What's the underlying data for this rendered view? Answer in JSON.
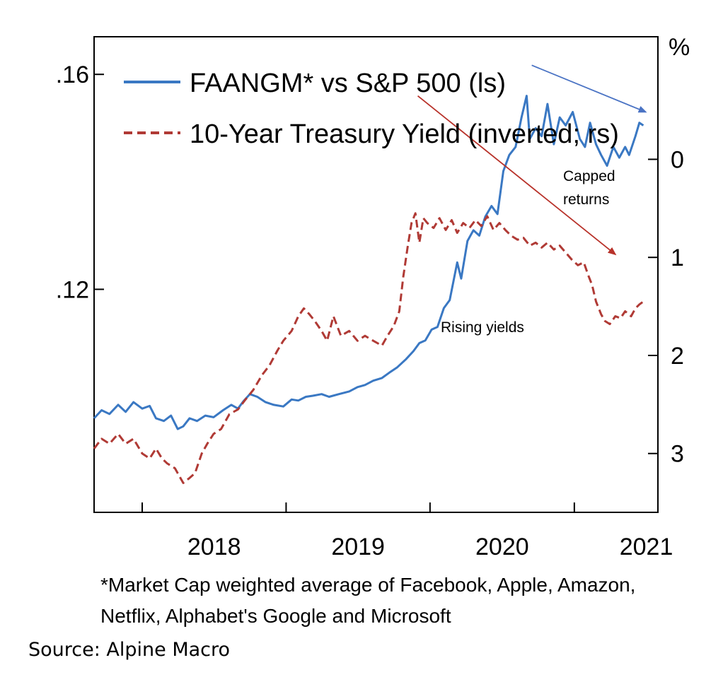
{
  "chart_data": {
    "type": "line",
    "x_axis": {
      "ticks": [
        "2018",
        "2019",
        "2020",
        "2021"
      ],
      "range": [
        "2017-09-01",
        "2021-08-01"
      ]
    },
    "y_left": {
      "ticks": [
        ".16",
        ".12"
      ],
      "tick_values": [
        0.16,
        0.12
      ],
      "range": [
        0.0785,
        0.167
      ]
    },
    "y_right": {
      "label": "%",
      "ticks": [
        "0",
        "1",
        "2",
        "3"
      ],
      "tick_values": [
        0,
        1,
        2,
        3
      ],
      "inverted": true,
      "range": [
        -1.25,
        3.6
      ]
    },
    "series": [
      {
        "name": "FAANGM* vs S&P 500 (ls)",
        "axis": "left",
        "color": "#3a78c3",
        "style": "solid",
        "points": [
          [
            "2017-09-01",
            0.096
          ],
          [
            "2017-09-20",
            0.0975
          ],
          [
            "2017-10-10",
            0.0968
          ],
          [
            "2017-11-01",
            0.0985
          ],
          [
            "2017-11-20",
            0.0972
          ],
          [
            "2017-12-10",
            0.099
          ],
          [
            "2018-01-01",
            0.0978
          ],
          [
            "2018-01-20",
            0.0983
          ],
          [
            "2018-02-05",
            0.096
          ],
          [
            "2018-02-25",
            0.0955
          ],
          [
            "2018-03-15",
            0.0965
          ],
          [
            "2018-04-01",
            0.094
          ],
          [
            "2018-04-15",
            0.0945
          ],
          [
            "2018-05-01",
            0.096
          ],
          [
            "2018-05-20",
            0.0955
          ],
          [
            "2018-06-10",
            0.0965
          ],
          [
            "2018-07-01",
            0.0962
          ],
          [
            "2018-07-25",
            0.0975
          ],
          [
            "2018-08-15",
            0.0985
          ],
          [
            "2018-09-01",
            0.0978
          ],
          [
            "2018-09-15",
            0.0992
          ],
          [
            "2018-10-01",
            0.1005
          ],
          [
            "2018-10-20",
            0.1
          ],
          [
            "2018-11-10",
            0.099
          ],
          [
            "2018-12-01",
            0.0985
          ],
          [
            "2018-12-25",
            0.0982
          ],
          [
            "2019-01-15",
            0.0995
          ],
          [
            "2019-02-01",
            0.0993
          ],
          [
            "2019-02-20",
            0.1
          ],
          [
            "2019-03-10",
            0.1002
          ],
          [
            "2019-04-01",
            0.1005
          ],
          [
            "2019-04-20",
            0.1
          ],
          [
            "2019-05-15",
            0.1005
          ],
          [
            "2019-06-10",
            0.101
          ],
          [
            "2019-07-01",
            0.1018
          ],
          [
            "2019-07-20",
            0.1022
          ],
          [
            "2019-08-10",
            0.103
          ],
          [
            "2019-09-01",
            0.1035
          ],
          [
            "2019-09-20",
            0.1045
          ],
          [
            "2019-10-10",
            0.1055
          ],
          [
            "2019-11-01",
            0.107
          ],
          [
            "2019-11-20",
            0.1085
          ],
          [
            "2019-12-05",
            0.11
          ],
          [
            "2019-12-20",
            0.1105
          ],
          [
            "2020-01-05",
            0.1125
          ],
          [
            "2020-01-20",
            0.113
          ],
          [
            "2020-02-05",
            0.1165
          ],
          [
            "2020-02-20",
            0.118
          ],
          [
            "2020-03-10",
            0.125
          ],
          [
            "2020-03-20",
            0.122
          ],
          [
            "2020-04-05",
            0.129
          ],
          [
            "2020-04-20",
            0.131
          ],
          [
            "2020-05-05",
            0.13
          ],
          [
            "2020-05-20",
            0.1335
          ],
          [
            "2020-06-05",
            0.1355
          ],
          [
            "2020-06-20",
            0.134
          ],
          [
            "2020-07-05",
            0.142
          ],
          [
            "2020-07-20",
            0.145
          ],
          [
            "2020-08-05",
            0.1465
          ],
          [
            "2020-08-20",
            0.152
          ],
          [
            "2020-09-02",
            0.156
          ],
          [
            "2020-09-10",
            0.148
          ],
          [
            "2020-09-25",
            0.15
          ],
          [
            "2020-10-10",
            0.1485
          ],
          [
            "2020-10-25",
            0.1545
          ],
          [
            "2020-11-10",
            0.147
          ],
          [
            "2020-11-25",
            0.152
          ],
          [
            "2020-12-10",
            0.1505
          ],
          [
            "2020-12-28",
            0.153
          ],
          [
            "2021-01-15",
            0.148
          ],
          [
            "2021-01-28",
            0.1465
          ],
          [
            "2021-02-10",
            0.151
          ],
          [
            "2021-02-25",
            0.147
          ],
          [
            "2021-03-10",
            0.145
          ],
          [
            "2021-03-25",
            0.143
          ],
          [
            "2021-04-10",
            0.1465
          ],
          [
            "2021-04-25",
            0.1445
          ],
          [
            "2021-05-10",
            0.1465
          ],
          [
            "2021-05-20",
            0.145
          ],
          [
            "2021-06-05",
            0.1485
          ],
          [
            "2021-06-15",
            0.151
          ],
          [
            "2021-06-25",
            0.1505
          ]
        ]
      },
      {
        "name": "10-Year Treasury Yield (inverted; rs)",
        "axis": "right",
        "color": "#b03a35",
        "style": "dashed",
        "points": [
          [
            "2017-09-01",
            2.95
          ],
          [
            "2017-09-20",
            2.85
          ],
          [
            "2017-10-10",
            2.9
          ],
          [
            "2017-11-01",
            2.8
          ],
          [
            "2017-11-20",
            2.9
          ],
          [
            "2017-12-10",
            2.85
          ],
          [
            "2018-01-01",
            3.0
          ],
          [
            "2018-01-20",
            3.05
          ],
          [
            "2018-02-05",
            2.95
          ],
          [
            "2018-02-20",
            3.05
          ],
          [
            "2018-03-05",
            3.1
          ],
          [
            "2018-03-25",
            3.15
          ],
          [
            "2018-04-15",
            3.3
          ],
          [
            "2018-05-01",
            3.25
          ],
          [
            "2018-05-15",
            3.2
          ],
          [
            "2018-06-01",
            3.0
          ],
          [
            "2018-06-15",
            2.9
          ],
          [
            "2018-07-01",
            2.8
          ],
          [
            "2018-07-20",
            2.75
          ],
          [
            "2018-08-10",
            2.6
          ],
          [
            "2018-09-01",
            2.55
          ],
          [
            "2018-09-20",
            2.45
          ],
          [
            "2018-10-10",
            2.35
          ],
          [
            "2018-11-01",
            2.2
          ],
          [
            "2018-11-20",
            2.1
          ],
          [
            "2018-12-10",
            1.95
          ],
          [
            "2018-12-25",
            1.85
          ],
          [
            "2019-01-15",
            1.75
          ],
          [
            "2019-02-01",
            1.6
          ],
          [
            "2019-02-15",
            1.52
          ],
          [
            "2019-03-01",
            1.58
          ],
          [
            "2019-03-15",
            1.65
          ],
          [
            "2019-04-01",
            1.75
          ],
          [
            "2019-04-15",
            1.85
          ],
          [
            "2019-05-01",
            1.6
          ],
          [
            "2019-05-20",
            1.8
          ],
          [
            "2019-06-10",
            1.75
          ],
          [
            "2019-07-01",
            1.85
          ],
          [
            "2019-07-20",
            1.8
          ],
          [
            "2019-08-10",
            1.85
          ],
          [
            "2019-09-01",
            1.9
          ],
          [
            "2019-09-15",
            1.8
          ],
          [
            "2019-10-01",
            1.7
          ],
          [
            "2019-10-15",
            1.55
          ],
          [
            "2019-10-25",
            1.2
          ],
          [
            "2019-11-05",
            0.9
          ],
          [
            "2019-11-15",
            0.65
          ],
          [
            "2019-11-25",
            0.55
          ],
          [
            "2019-12-05",
            0.85
          ],
          [
            "2019-12-15",
            0.6
          ],
          [
            "2019-12-25",
            0.65
          ],
          [
            "2020-01-10",
            0.7
          ],
          [
            "2020-01-25",
            0.6
          ],
          [
            "2020-02-10",
            0.72
          ],
          [
            "2020-02-25",
            0.62
          ],
          [
            "2020-03-10",
            0.75
          ],
          [
            "2020-03-25",
            0.65
          ],
          [
            "2020-04-10",
            0.7
          ],
          [
            "2020-04-25",
            0.62
          ],
          [
            "2020-05-10",
            0.68
          ],
          [
            "2020-05-25",
            0.58
          ],
          [
            "2020-06-10",
            0.72
          ],
          [
            "2020-06-25",
            0.65
          ],
          [
            "2020-07-10",
            0.72
          ],
          [
            "2020-07-25",
            0.78
          ],
          [
            "2020-08-10",
            0.82
          ],
          [
            "2020-08-25",
            0.8
          ],
          [
            "2020-09-10",
            0.88
          ],
          [
            "2020-09-25",
            0.85
          ],
          [
            "2020-10-10",
            0.9
          ],
          [
            "2020-10-25",
            0.85
          ],
          [
            "2020-11-10",
            0.92
          ],
          [
            "2020-11-25",
            0.88
          ],
          [
            "2020-12-10",
            0.95
          ],
          [
            "2020-12-25",
            1.02
          ],
          [
            "2021-01-10",
            1.08
          ],
          [
            "2021-01-25",
            1.05
          ],
          [
            "2021-02-05",
            1.18
          ],
          [
            "2021-02-15",
            1.28
          ],
          [
            "2021-02-25",
            1.45
          ],
          [
            "2021-03-10",
            1.58
          ],
          [
            "2021-03-20",
            1.65
          ],
          [
            "2021-04-01",
            1.68
          ],
          [
            "2021-04-15",
            1.6
          ],
          [
            "2021-04-28",
            1.62
          ],
          [
            "2021-05-10",
            1.55
          ],
          [
            "2021-05-25",
            1.6
          ],
          [
            "2021-06-05",
            1.52
          ],
          [
            "2021-06-15",
            1.48
          ],
          [
            "2021-06-25",
            1.45
          ]
        ]
      }
    ],
    "annotations": [
      {
        "text": "Capped",
        "color": "#4a73c4"
      },
      {
        "text": "returns"
      },
      {
        "text": "Rising yields",
        "color": "#b8322a"
      }
    ],
    "arrows": [
      {
        "color": "#4a73c4",
        "from": [
          "2020-09-15",
          0.1617
        ],
        "to": [
          "2021-07-01",
          0.153
        ],
        "axis": "left"
      },
      {
        "color": "#b8322a",
        "from": [
          "2019-12-01",
          0.156
        ],
        "to": [
          "2021-04-15",
          0.1265
        ],
        "axis": "left"
      }
    ],
    "grid": false
  },
  "footnote": {
    "line1": "*Market Cap weighted average of Facebook, Apple, Amazon,",
    "line2": "Netflix, Alphabet's Google and Microsoft"
  },
  "source": "Source:  Alpine Macro"
}
